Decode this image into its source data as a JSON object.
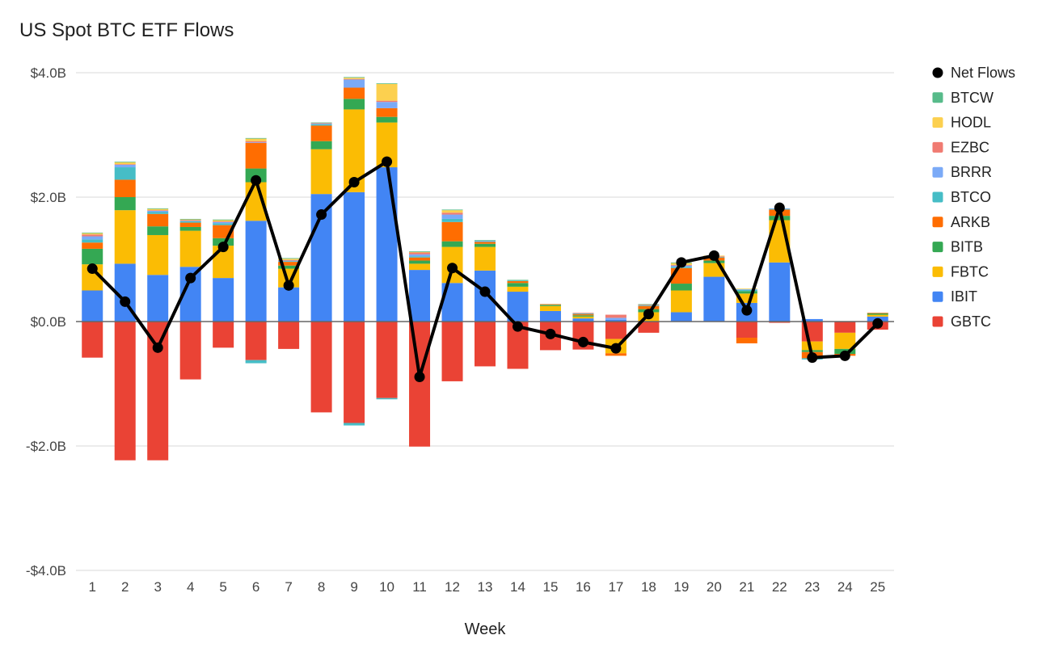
{
  "chart_data": {
    "type": "bar",
    "stacked": true,
    "title": "US Spot BTC ETF Flows",
    "xlabel": "Week",
    "ylabel": "",
    "ylim": [
      -4.0,
      4.0
    ],
    "yticks": [
      -4.0,
      -2.0,
      0.0,
      2.0,
      4.0
    ],
    "ytick_labels": [
      "-$4.0B",
      "-$2.0B",
      "$0.0B",
      "$2.0B",
      "$4.0B"
    ],
    "grid": true,
    "legend_position": "right",
    "categories": [
      "1",
      "2",
      "3",
      "4",
      "5",
      "6",
      "7",
      "8",
      "9",
      "10",
      "11",
      "12",
      "13",
      "14",
      "15",
      "16",
      "17",
      "18",
      "19",
      "20",
      "21",
      "22",
      "23",
      "24",
      "25"
    ],
    "series": [
      {
        "name": "GBTC",
        "color": "#ea4335",
        "values": [
          -0.58,
          -2.23,
          -2.23,
          -0.93,
          -0.42,
          -0.62,
          -0.44,
          -1.46,
          -1.63,
          -1.23,
          -2.01,
          -0.96,
          -0.72,
          -0.76,
          -0.46,
          -0.45,
          -0.28,
          -0.18,
          0.0,
          0.0,
          -0.26,
          -0.02,
          -0.32,
          -0.18,
          -0.13
        ]
      },
      {
        "name": "IBIT",
        "color": "#4285f4",
        "values": [
          0.5,
          0.93,
          0.75,
          0.88,
          0.7,
          1.62,
          0.55,
          2.05,
          2.08,
          2.48,
          0.83,
          0.62,
          0.82,
          0.48,
          0.17,
          0.05,
          0.03,
          0.0,
          0.15,
          0.72,
          0.3,
          0.95,
          0.04,
          0.0,
          0.08
        ]
      },
      {
        "name": "FBTC",
        "color": "#fbbc04",
        "values": [
          0.42,
          0.86,
          0.64,
          0.58,
          0.52,
          0.62,
          0.3,
          0.72,
          1.33,
          0.72,
          0.1,
          0.58,
          0.38,
          0.08,
          0.08,
          0.03,
          -0.23,
          0.15,
          0.35,
          0.22,
          0.15,
          0.68,
          -0.14,
          -0.26,
          0.03
        ]
      },
      {
        "name": "BITB",
        "color": "#34a853",
        "values": [
          0.25,
          0.21,
          0.14,
          0.06,
          0.12,
          0.22,
          0.05,
          0.13,
          0.17,
          0.09,
          0.05,
          0.09,
          0.05,
          0.06,
          0.02,
          0.02,
          0.0,
          0.05,
          0.11,
          0.04,
          0.04,
          0.07,
          -0.03,
          -0.08,
          0.02
        ]
      },
      {
        "name": "ARKB",
        "color": "#ff6d01",
        "values": [
          0.1,
          0.28,
          0.2,
          0.07,
          0.21,
          0.41,
          0.06,
          0.25,
          0.18,
          0.14,
          0.05,
          0.31,
          0.03,
          0.03,
          0.01,
          0.02,
          -0.04,
          0.05,
          0.25,
          0.05,
          -0.09,
          0.1,
          -0.1,
          -0.03,
          0.01
        ]
      },
      {
        "name": "BTCO",
        "color": "#46bdc6",
        "values": [
          0.05,
          0.2,
          0.03,
          0.02,
          0.03,
          -0.05,
          0.01,
          0.02,
          -0.04,
          -0.02,
          0.02,
          0.05,
          0.01,
          0.01,
          0.0,
          0.01,
          0.0,
          0.01,
          0.02,
          0.01,
          0.02,
          0.01,
          -0.02,
          0.0,
          0.0
        ]
      },
      {
        "name": "BRRR",
        "color": "#7baaf7",
        "values": [
          0.05,
          0.04,
          0.02,
          0.01,
          0.02,
          0.01,
          0.01,
          0.01,
          0.13,
          0.1,
          0.03,
          0.07,
          0.01,
          0.0,
          0.0,
          0.0,
          0.03,
          0.0,
          0.02,
          0.0,
          0.01,
          0.01,
          0.0,
          0.0,
          0.0
        ]
      },
      {
        "name": "EZBC",
        "color": "#f07b72",
        "values": [
          0.03,
          0.01,
          0.01,
          0.01,
          0.01,
          0.02,
          0.01,
          0.01,
          0.01,
          0.02,
          0.03,
          0.03,
          0.0,
          0.0,
          0.0,
          0.01,
          0.05,
          0.01,
          0.01,
          0.01,
          0.0,
          0.0,
          0.0,
          0.0,
          0.0
        ]
      },
      {
        "name": "HODL",
        "color": "#fcd04f",
        "values": [
          0.02,
          0.03,
          0.02,
          0.01,
          0.02,
          0.04,
          0.02,
          0.0,
          0.02,
          0.27,
          0.01,
          0.04,
          0.0,
          0.0,
          0.0,
          0.0,
          0.0,
          0.0,
          0.03,
          0.01,
          0.01,
          0.0,
          0.0,
          0.0,
          0.0
        ]
      },
      {
        "name": "BTCW",
        "color": "#57bb8a",
        "values": [
          0.01,
          0.01,
          0.01,
          0.01,
          0.01,
          0.01,
          0.01,
          0.01,
          0.01,
          0.01,
          0.01,
          0.01,
          0.01,
          0.01,
          0.0,
          0.0,
          0.0,
          0.01,
          0.01,
          0.0,
          0.0,
          0.0,
          0.0,
          0.0,
          0.0
        ]
      }
    ],
    "line": {
      "name": "Net Flows",
      "color": "#000000",
      "values": [
        0.85,
        0.32,
        -0.42,
        0.7,
        1.2,
        2.27,
        0.58,
        1.72,
        2.24,
        2.57,
        -0.89,
        0.86,
        0.48,
        -0.08,
        -0.2,
        -0.33,
        -0.43,
        0.12,
        0.95,
        1.06,
        0.18,
        1.83,
        -0.58,
        -0.55,
        -0.03
      ]
    },
    "legend_order": [
      "Net Flows",
      "BTCW",
      "HODL",
      "EZBC",
      "BRRR",
      "BTCO",
      "ARKB",
      "BITB",
      "FBTC",
      "IBIT",
      "GBTC"
    ]
  }
}
